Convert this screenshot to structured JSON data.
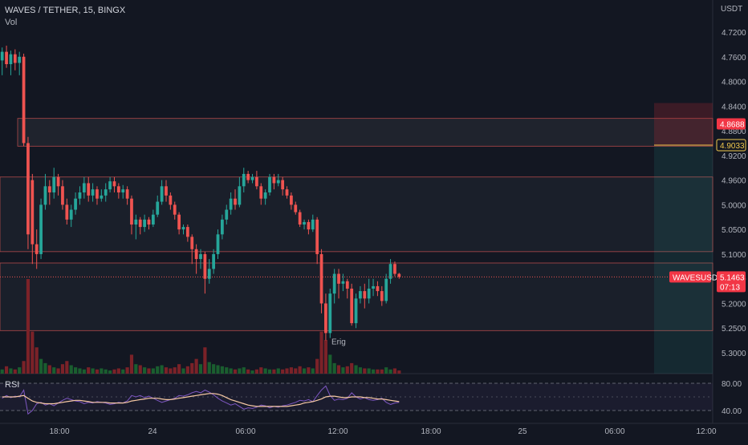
{
  "header": {
    "title": "WAVES / TETHER, 15, BINGX",
    "indicator": "Vol"
  },
  "rsi_label": "RSI",
  "colors": {
    "background": "#131722",
    "up": "#26a69a",
    "down": "#ef5350",
    "vol_up": "#1a5e2f",
    "vol_down": "#7b2228",
    "rsi": "#7e57c2",
    "rsi_ma": "#f7c9a4"
  },
  "chart_data": {
    "type": "candlestick",
    "symbol": "WAVES / TETHER",
    "interval": "15",
    "exchange": "BINGX",
    "y_unit": "USDT",
    "y_axis_labels": [
      "4.7200",
      "4.7600",
      "4.8000",
      "4.8400",
      "4.8800",
      "4.9200",
      "4.9600",
      "5.0000",
      "5.0500",
      "5.1000",
      "5.1500",
      "5.2000",
      "5.2500",
      "5.3000"
    ],
    "x_axis_labels": [
      "18:00",
      "24",
      "06:00",
      "12:00",
      "18:00",
      "25",
      "06:00",
      "12:00"
    ],
    "price_badges": [
      {
        "value": "4.8688",
        "style": "alert"
      },
      {
        "value": "4.9033",
        "style": "level"
      },
      {
        "value": "5.1463",
        "symbol": "WAVESUSDT",
        "countdown": "07:13",
        "style": "last"
      }
    ],
    "annotation": "Erig",
    "rsi": {
      "levels": [
        "80.00",
        "40.00"
      ]
    },
    "candles": [
      [
        4.766,
        4.752,
        4.79,
        4.745
      ],
      [
        4.752,
        4.772,
        4.778,
        4.742
      ],
      [
        4.772,
        4.756,
        4.79,
        4.75
      ],
      [
        4.756,
        4.77,
        4.782,
        4.748
      ],
      [
        4.77,
        4.76,
        4.79,
        4.752
      ],
      [
        4.76,
        4.9,
        4.905,
        4.755
      ],
      [
        4.9,
        5.06,
        5.09,
        4.89
      ],
      [
        4.96,
        5.08,
        5.12,
        4.95
      ],
      [
        5.08,
        5.1,
        5.13,
        5.05
      ],
      [
        5.1,
        5.0,
        5.11,
        4.99
      ],
      [
        5.0,
        4.97,
        5.01,
        4.95
      ],
      [
        4.97,
        4.98,
        5.0,
        4.96
      ],
      [
        4.98,
        4.955,
        4.99,
        4.94
      ],
      [
        4.955,
        4.97,
        4.985,
        4.95
      ],
      [
        4.97,
        5.0,
        5.01,
        4.96
      ],
      [
        5.0,
        5.03,
        5.04,
        4.99
      ],
      [
        5.03,
        5.01,
        5.045,
        5.0
      ],
      [
        5.01,
        4.99,
        5.02,
        4.98
      ],
      [
        4.99,
        4.98,
        5.0,
        4.97
      ],
      [
        4.98,
        4.965,
        4.99,
        4.955
      ],
      [
        4.965,
        4.985,
        4.995,
        4.955
      ],
      [
        4.985,
        4.975,
        4.995,
        4.965
      ],
      [
        4.975,
        4.99,
        5.0,
        4.97
      ],
      [
        4.99,
        4.985,
        4.995,
        4.975
      ],
      [
        4.985,
        4.975,
        4.995,
        4.965
      ],
      [
        4.975,
        4.962,
        4.98,
        4.955
      ],
      [
        4.962,
        4.97,
        4.98,
        4.955
      ],
      [
        4.97,
        4.98,
        4.99,
        4.965
      ],
      [
        4.98,
        4.975,
        4.99,
        4.968
      ],
      [
        4.975,
        4.99,
        5.0,
        4.97
      ],
      [
        4.99,
        5.04,
        5.06,
        4.985
      ],
      [
        5.04,
        5.03,
        5.07,
        5.02
      ],
      [
        5.03,
        5.045,
        5.06,
        5.025
      ],
      [
        5.045,
        5.03,
        5.055,
        5.02
      ],
      [
        5.03,
        5.04,
        5.05,
        5.025
      ],
      [
        5.04,
        5.02,
        5.045,
        5.01
      ],
      [
        5.02,
        4.995,
        5.025,
        4.985
      ],
      [
        4.995,
        4.97,
        5.0,
        4.96
      ],
      [
        4.97,
        4.985,
        4.995,
        4.96
      ],
      [
        4.985,
        5.0,
        5.01,
        4.98
      ],
      [
        5.0,
        5.02,
        5.03,
        4.995
      ],
      [
        5.02,
        5.05,
        5.06,
        5.015
      ],
      [
        5.05,
        5.045,
        5.06,
        5.04
      ],
      [
        5.045,
        5.065,
        5.075,
        5.04
      ],
      [
        5.065,
        5.09,
        5.12,
        5.06
      ],
      [
        5.09,
        5.11,
        5.14,
        5.08
      ],
      [
        5.11,
        5.1,
        5.13,
        5.09
      ],
      [
        5.1,
        5.15,
        5.18,
        5.095
      ],
      [
        5.15,
        5.13,
        5.16,
        5.11
      ],
      [
        5.13,
        5.1,
        5.14,
        5.09
      ],
      [
        5.1,
        5.06,
        5.11,
        5.05
      ],
      [
        5.06,
        5.03,
        5.07,
        5.02
      ],
      [
        5.03,
        5.01,
        5.04,
        5.0
      ],
      [
        5.01,
        4.99,
        5.02,
        4.98
      ],
      [
        4.99,
        5.0,
        5.01,
        4.975
      ],
      [
        5.0,
        4.97,
        5.005,
        4.955
      ],
      [
        4.97,
        4.95,
        4.98,
        4.94
      ],
      [
        4.95,
        4.96,
        4.965,
        4.945
      ],
      [
        4.96,
        4.955,
        4.965,
        4.95
      ],
      [
        4.955,
        4.97,
        4.975,
        4.945
      ],
      [
        4.97,
        4.99,
        5.0,
        4.965
      ],
      [
        4.99,
        4.98,
        5.0,
        4.975
      ],
      [
        4.98,
        4.955,
        4.985,
        4.95
      ],
      [
        4.955,
        4.965,
        4.975,
        4.95
      ],
      [
        4.965,
        4.96,
        4.97,
        4.95
      ],
      [
        4.96,
        4.975,
        4.985,
        4.955
      ],
      [
        4.975,
        4.985,
        4.99,
        4.97
      ],
      [
        4.985,
        5.0,
        5.01,
        4.98
      ],
      [
        5.0,
        5.015,
        5.02,
        4.995
      ],
      [
        5.015,
        5.04,
        5.045,
        5.01
      ],
      [
        5.04,
        5.035,
        5.05,
        5.03
      ],
      [
        5.035,
        5.05,
        5.06,
        5.03
      ],
      [
        5.05,
        5.03,
        5.055,
        5.02
      ],
      [
        5.03,
        5.1,
        5.12,
        5.025
      ],
      [
        5.1,
        5.2,
        5.22,
        5.09
      ],
      [
        5.2,
        5.26,
        5.275,
        5.18
      ],
      [
        5.26,
        5.18,
        5.27,
        5.17
      ],
      [
        5.18,
        5.14,
        5.2,
        5.13
      ],
      [
        5.14,
        5.16,
        5.19,
        5.13
      ],
      [
        5.16,
        5.155,
        5.175,
        5.14
      ],
      [
        5.155,
        5.17,
        5.19,
        5.15
      ],
      [
        5.17,
        5.24,
        5.245,
        5.16
      ],
      [
        5.24,
        5.19,
        5.25,
        5.18
      ],
      [
        5.19,
        5.175,
        5.2,
        5.165
      ],
      [
        5.175,
        5.19,
        5.21,
        5.16
      ],
      [
        5.19,
        5.17,
        5.2,
        5.15
      ],
      [
        5.17,
        5.165,
        5.185,
        5.15
      ],
      [
        5.165,
        5.175,
        5.185,
        5.155
      ],
      [
        5.175,
        5.195,
        5.205,
        5.165
      ],
      [
        5.195,
        5.15,
        5.2,
        5.14
      ],
      [
        5.15,
        5.12,
        5.16,
        5.11
      ],
      [
        5.12,
        5.14,
        5.145,
        5.115
      ],
      [
        5.14,
        5.146,
        5.15,
        5.138
      ]
    ],
    "volume": [
      4,
      7,
      5,
      4,
      6,
      12,
      90,
      40,
      25,
      14,
      10,
      8,
      6,
      5,
      9,
      12,
      8,
      6,
      5,
      4,
      6,
      5,
      4,
      5,
      4,
      3,
      4,
      5,
      4,
      6,
      18,
      9,
      8,
      6,
      5,
      5,
      7,
      8,
      6,
      5,
      6,
      9,
      5,
      7,
      10,
      14,
      9,
      25,
      11,
      9,
      8,
      7,
      6,
      5,
      4,
      5,
      6,
      4,
      3,
      4,
      6,
      5,
      4,
      4,
      5,
      4,
      5,
      6,
      5,
      7,
      5,
      6,
      5,
      14,
      40,
      32,
      18,
      10,
      8,
      6,
      7,
      10,
      8,
      6,
      5,
      5,
      4,
      4,
      4,
      6,
      4,
      5,
      3
    ],
    "rsi_values": [
      58,
      62,
      59,
      61,
      60,
      70,
      35,
      40,
      50,
      52,
      48,
      50,
      47,
      51,
      55,
      58,
      56,
      54,
      53,
      50,
      52,
      51,
      53,
      52,
      51,
      49,
      50,
      52,
      51,
      54,
      62,
      60,
      62,
      59,
      61,
      58,
      55,
      52,
      54,
      56,
      58,
      62,
      61,
      63,
      66,
      68,
      66,
      70,
      67,
      63,
      58,
      54,
      51,
      48,
      50,
      46,
      42,
      44,
      43,
      45,
      48,
      47,
      44,
      46,
      45,
      47,
      48,
      50,
      52,
      55,
      54,
      56,
      53,
      62,
      70,
      76,
      62,
      55,
      57,
      56,
      58,
      66,
      60,
      57,
      59,
      56,
      55,
      56,
      58,
      52,
      49,
      51,
      52
    ],
    "rsi_ma_values": [
      60,
      60,
      60,
      60,
      61,
      62,
      58,
      54,
      52,
      51,
      50,
      50,
      50,
      51,
      52,
      53,
      54,
      55,
      55,
      54,
      53,
      52,
      52,
      52,
      52,
      51,
      51,
      51,
      51,
      52,
      54,
      55,
      56,
      57,
      58,
      58,
      58,
      57,
      56,
      56,
      57,
      58,
      59,
      60,
      61,
      62,
      63,
      64,
      65,
      65,
      64,
      62,
      59,
      56,
      54,
      52,
      50,
      48,
      47,
      46,
      46,
      46,
      46,
      46,
      46,
      46,
      46,
      47,
      48,
      49,
      51,
      52,
      53,
      55,
      57,
      60,
      61,
      61,
      60,
      59,
      59,
      60,
      60,
      60,
      59,
      59,
      58,
      57,
      57,
      56,
      55,
      54,
      53
    ]
  }
}
